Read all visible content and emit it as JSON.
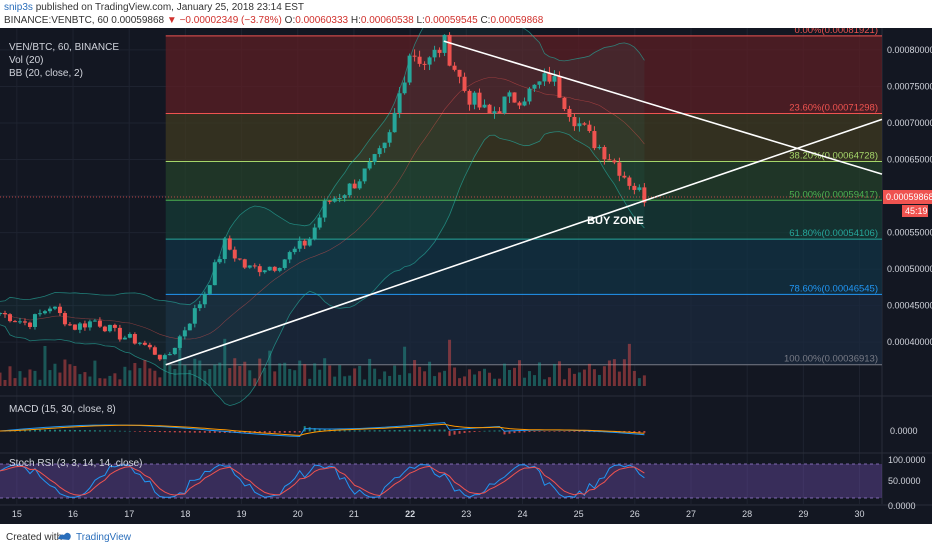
{
  "header": {
    "author": "snip3s",
    "published_text": "published on TradingView.com, January 25, 2018 23:14 EST",
    "ticker": "BINANCE:VENBTC, 60",
    "last": "0.00059868",
    "change": "−0.00002349 (−3.78%)",
    "o_label": "O:",
    "o_value": "0.00060333",
    "h_label": "H:",
    "h_value": "0.00060538",
    "l_label": "L:",
    "l_value": "0.00059545",
    "c_label": "C:",
    "c_value": "0.00059868"
  },
  "legend": {
    "symbol": "VEN/BTC, 60, BINANCE",
    "vol": "Vol (20)",
    "bb": "BB (20, close, 2)",
    "macd": "MACD (15, 30, close, 8)",
    "stoch": "Stoch RSI (3, 3, 14, 14, close)"
  },
  "annotation": {
    "buy_zone": "BUY ZONE"
  },
  "price_tag": {
    "value": "0.00059868",
    "countdown": "45:19"
  },
  "footer": {
    "created": "Created with",
    "brand": "TradingView"
  },
  "colors": {
    "background": "#131722",
    "up": "#26a69a",
    "down": "#ef5350",
    "bb": "#26a69a",
    "macd": "#2196f3",
    "signal": "#ff9800",
    "stoch_k": "#2196f3",
    "stoch_d": "#ef5350",
    "trendline": "#ffffff"
  },
  "chart_data": {
    "type": "candlestick",
    "x_ticks": [
      "15",
      "16",
      "17",
      "18",
      "19",
      "20",
      "21",
      "22",
      "23",
      "24",
      "25",
      "26",
      "27",
      "28",
      "29",
      "30"
    ],
    "y_ticks": [
      "0.00080000",
      "0.00075000",
      "0.00070000",
      "0.00065000",
      "0.00060000",
      "0.00055000",
      "0.00050000",
      "0.00045000",
      "0.00040000"
    ],
    "ylim": [
      0.00034,
      0.00083
    ],
    "x_range": [
      14.7,
      30.4
    ],
    "fib_levels": [
      {
        "label": "0.00%(0.00081921)",
        "price": 0.00081921,
        "color": "#ef5350"
      },
      {
        "label": "23.60%(0.00071298)",
        "price": 0.00071298,
        "color": "#ef5350"
      },
      {
        "label": "38.20%(0.00064728)",
        "price": 0.00064728,
        "color": "#a5d66a"
      },
      {
        "label": "50.00%(0.00059417)",
        "price": 0.00059417,
        "color": "#4caf50"
      },
      {
        "label": "61.80%(0.00054106)",
        "price": 0.00054106,
        "color": "#26a69a"
      },
      {
        "label": "78.60%(0.00046545)",
        "price": 0.00046545,
        "color": "#2196f3"
      },
      {
        "label": "100.00%(0.00036913)",
        "price": 0.00036913,
        "color": "#787b86"
      }
    ],
    "fib_x_start": 17.65,
    "trendlines": [
      {
        "name": "descending",
        "from": [
          22.6,
          0.000812
        ],
        "to": [
          30.4,
          0.00063
        ]
      },
      {
        "name": "ascending",
        "from": [
          17.65,
          0.00036913
        ],
        "to": [
          30.4,
          0.000705
        ]
      }
    ],
    "price_anchors": [
      [
        14.7,
        0.00044
      ],
      [
        15.2,
        0.000425
      ],
      [
        15.6,
        0.00045
      ],
      [
        16.0,
        0.00042
      ],
      [
        16.4,
        0.00043
      ],
      [
        16.8,
        0.00041
      ],
      [
        17.2,
        0.0004
      ],
      [
        17.65,
        0.000375
      ],
      [
        18.0,
        0.00042
      ],
      [
        18.3,
        0.00046
      ],
      [
        18.7,
        0.000535
      ],
      [
        19.1,
        0.0005
      ],
      [
        19.6,
        0.000505
      ],
      [
        20.2,
        0.00054
      ],
      [
        20.5,
        0.00059
      ],
      [
        20.9,
        0.00061
      ],
      [
        21.3,
        0.00064
      ],
      [
        21.6,
        0.00067
      ],
      [
        22.0,
        0.0008
      ],
      [
        22.3,
        0.00078
      ],
      [
        22.6,
        0.00081
      ],
      [
        23.0,
        0.00074
      ],
      [
        23.4,
        0.00071
      ],
      [
        23.7,
        0.00073
      ],
      [
        24.1,
        0.00074
      ],
      [
        24.5,
        0.000765
      ],
      [
        24.9,
        0.00071
      ],
      [
        25.2,
        0.00068
      ],
      [
        25.6,
        0.00065
      ],
      [
        25.9,
        0.00062
      ],
      [
        26.17,
        0.00059868
      ]
    ],
    "stoch_ticks": [
      "100.0000",
      "50.0000",
      "0.0000"
    ],
    "macd_ticks": [
      "0.0000"
    ]
  }
}
